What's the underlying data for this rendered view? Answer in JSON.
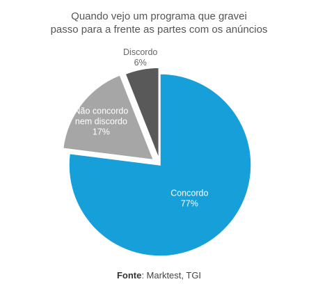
{
  "chart_data": {
    "type": "pie",
    "title_lines": [
      "Quando vejo um programa que gravei",
      "passo para a frente as partes com os anúncios"
    ],
    "slices": [
      {
        "label_lines": [
          "Concordo"
        ],
        "value_label": "77%",
        "value": 77,
        "color": "#169fd8",
        "label_color": "#ffffff"
      },
      {
        "label_lines": [
          "Não concordo",
          "nem discordo"
        ],
        "value_label": "17%",
        "value": 17,
        "color": "#a6a6a6",
        "label_color": "#ffffff"
      },
      {
        "label_lines": [
          "Discordo"
        ],
        "value_label": "6%",
        "value": 6,
        "color": "#595959",
        "label_color": "#666666"
      }
    ],
    "legend": "none"
  },
  "source": {
    "label": "Fonte",
    "text": ": Marktest, TGI"
  }
}
